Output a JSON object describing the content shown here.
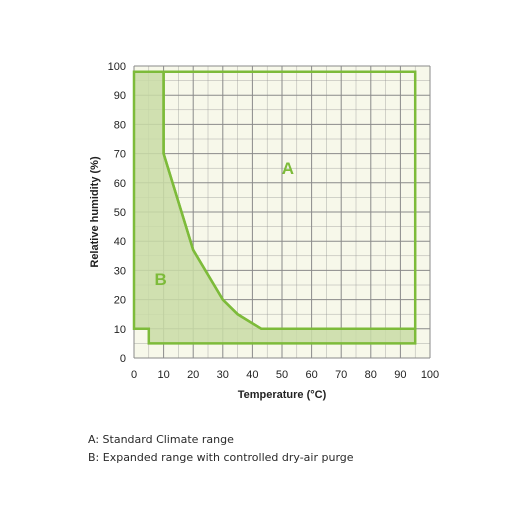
{
  "chart_data": {
    "type": "area",
    "xlabel": "Temperature (°C)",
    "ylabel": "Relative humidity (%)",
    "xlim": [
      0,
      100
    ],
    "ylim": [
      0,
      100
    ],
    "xticks": [
      0,
      10,
      20,
      30,
      40,
      50,
      60,
      70,
      80,
      90,
      100
    ],
    "yticks": [
      0,
      10,
      20,
      30,
      40,
      50,
      60,
      70,
      80,
      90,
      100
    ],
    "minor_grid_step": 5,
    "grid": true,
    "regions": [
      {
        "name": "A",
        "points": [
          [
            10,
            98
          ],
          [
            95,
            98
          ],
          [
            95,
            10
          ],
          [
            43,
            10
          ],
          [
            35,
            15
          ],
          [
            30,
            20
          ],
          [
            20,
            37
          ],
          [
            10,
            70
          ]
        ]
      },
      {
        "name": "B",
        "points": [
          [
            0,
            98
          ],
          [
            10,
            98
          ],
          [
            10,
            70
          ],
          [
            20,
            37
          ],
          [
            30,
            20
          ],
          [
            35,
            15
          ],
          [
            43,
            10
          ],
          [
            95,
            10
          ],
          [
            95,
            5
          ],
          [
            5,
            5
          ],
          [
            5,
            10
          ],
          [
            0,
            10
          ]
        ]
      }
    ],
    "region_labels": [
      {
        "text": "A",
        "x": 52,
        "y": 63
      },
      {
        "text": "B",
        "x": 9,
        "y": 25
      }
    ],
    "colors": {
      "background": "#f7f8ea",
      "grid": "#8a8a8a",
      "outline": "#7dbb3a",
      "fill_b": "#c9dca6",
      "label": "#7dbb3a"
    }
  },
  "legend": {
    "line_a": "A: Standard Climate range",
    "line_b": "B: Expanded range with controlled dry-air purge"
  }
}
